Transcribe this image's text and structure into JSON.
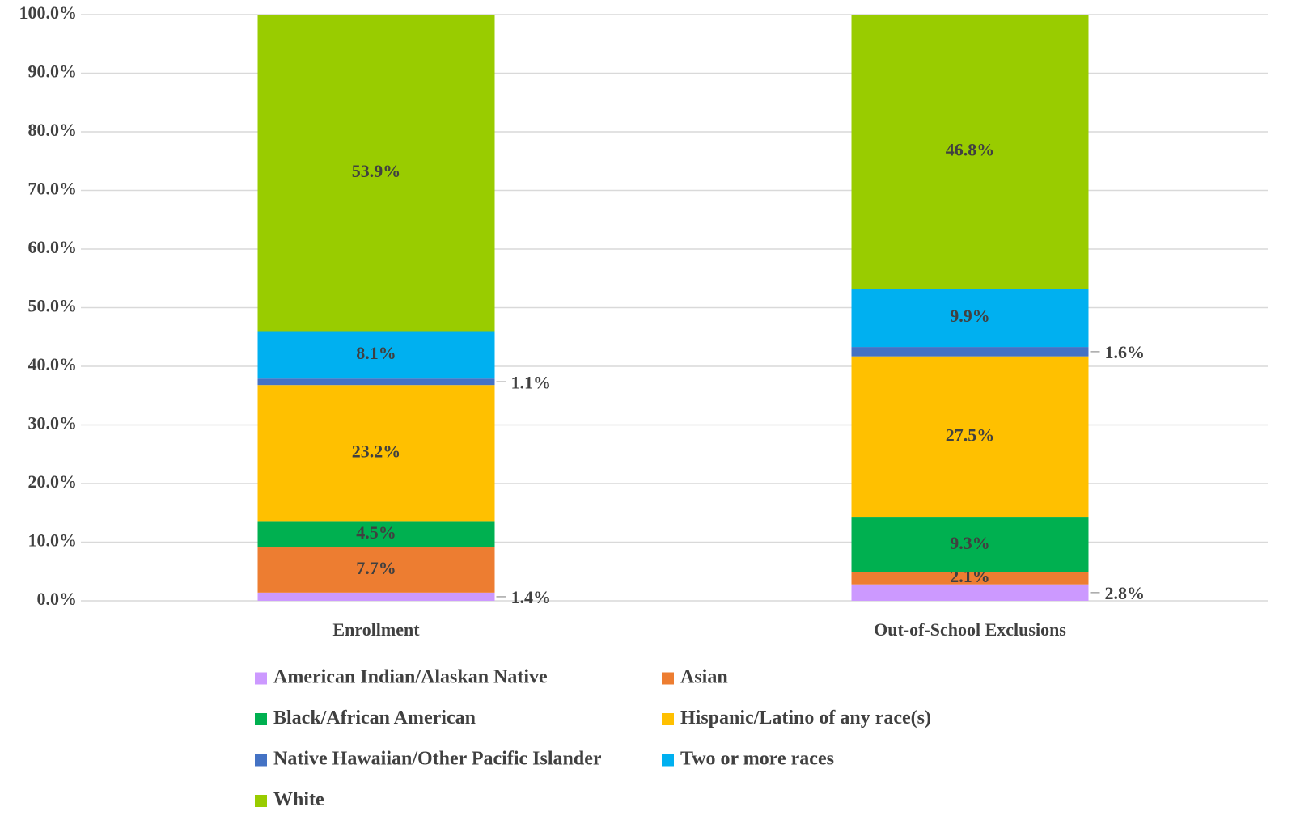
{
  "chart_data": {
    "type": "stacked_bar",
    "categories": [
      "Enrollment",
      "Out-of-School Exclusions"
    ],
    "series": [
      {
        "name": "American Indian/Alaskan Native",
        "color": "#cc99ff",
        "values": [
          1.4,
          2.8
        ],
        "value_labels": [
          "1.4%",
          "2.8%"
        ],
        "label_position": "outside"
      },
      {
        "name": "Asian",
        "color": "#ed7d31",
        "values": [
          7.7,
          2.1
        ],
        "value_labels": [
          "7.7%",
          "2.1%"
        ]
      },
      {
        "name": "Black/African American",
        "color": "#00b050",
        "values": [
          4.5,
          9.3
        ],
        "value_labels": [
          "4.5%",
          "9.3%"
        ]
      },
      {
        "name": "Hispanic/Latino of any race(s)",
        "color": "#ffc000",
        "values": [
          23.2,
          27.5
        ],
        "value_labels": [
          "23.2%",
          "27.5%"
        ]
      },
      {
        "name": "Native Hawaiian/Other Pacific Islander",
        "color": "#4472c4",
        "values": [
          1.1,
          1.6
        ],
        "value_labels": [
          "1.1%",
          "1.6%"
        ],
        "label_position": "outside"
      },
      {
        "name": "Two or more races",
        "color": "#00b0f0",
        "values": [
          8.1,
          9.9
        ],
        "value_labels": [
          "8.1%",
          "9.9%"
        ]
      },
      {
        "name": "White",
        "color": "#99cc00",
        "values": [
          53.9,
          46.8
        ],
        "value_labels": [
          "53.9%",
          "46.8%"
        ]
      }
    ],
    "ylim": [
      0,
      100
    ],
    "yticks": [
      {
        "value": 0,
        "label": "0.0%"
      },
      {
        "value": 10,
        "label": "10.0%"
      },
      {
        "value": 20,
        "label": "20.0%"
      },
      {
        "value": 30,
        "label": "30.0%"
      },
      {
        "value": 40,
        "label": "40.0%"
      },
      {
        "value": 50,
        "label": "50.0%"
      },
      {
        "value": 60,
        "label": "60.0%"
      },
      {
        "value": 70,
        "label": "70.0%"
      },
      {
        "value": 80,
        "label": "80.0%"
      },
      {
        "value": 90,
        "label": "90.0%"
      },
      {
        "value": 100,
        "label": "100.0%"
      }
    ],
    "grid": true,
    "legend": "bottom"
  }
}
